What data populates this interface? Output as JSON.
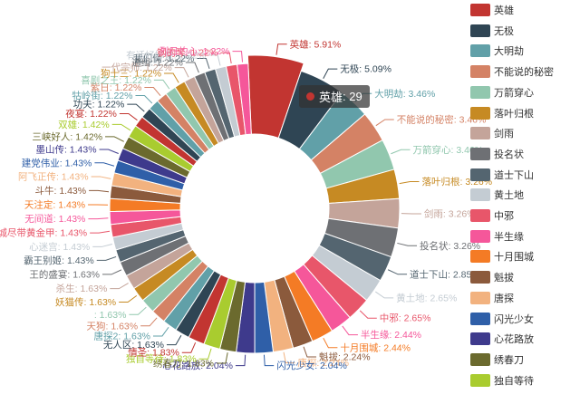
{
  "chart_data": {
    "type": "pie",
    "variant": "donut",
    "slices": [
      {
        "name": "英雄",
        "percent": 5.91,
        "color": "#c23531"
      },
      {
        "name": "无极",
        "percent": 5.09,
        "color": "#2f4554"
      },
      {
        "name": "大明劫",
        "percent": 3.46,
        "color": "#61a0a8"
      },
      {
        "name": "不能说的秘密",
        "percent": 3.46,
        "color": "#d48265"
      },
      {
        "name": "万箭穿心",
        "percent": 3.46,
        "color": "#91c7ae"
      },
      {
        "name": "落叶归根",
        "percent": 3.26,
        "color": "#c68a23"
      },
      {
        "name": "剑雨",
        "percent": 3.26,
        "color": "#c4a49a"
      },
      {
        "name": "投名状",
        "percent": 3.26,
        "color": "#6e7074"
      },
      {
        "name": "道士下山",
        "percent": 2.85,
        "color": "#546570"
      },
      {
        "name": "黄土地",
        "percent": 2.65,
        "color": "#c4ccd3"
      },
      {
        "name": "中邪",
        "percent": 2.65,
        "color": "#e8566a"
      },
      {
        "name": "半生缘",
        "percent": 2.44,
        "color": "#f5579a"
      },
      {
        "name": "十月围城",
        "percent": 2.44,
        "color": "#f47b25"
      },
      {
        "name": "魁拔",
        "percent": 2.24,
        "color": "#8b5a3c"
      },
      {
        "name": "唐探",
        "percent": 2.24,
        "color": "#f2b27f"
      },
      {
        "name": "闪光少女",
        "percent": 2.04,
        "color": "#2f5fa8"
      },
      {
        "name": "心花路放",
        "percent": 2.04,
        "color": "#3e3a8c"
      },
      {
        "name": "绣春刀",
        "percent": 1.83,
        "color": "#6b6a2e"
      },
      {
        "name": "独自等待",
        "percent": 1.83,
        "color": "#a9cc2f"
      },
      {
        "name": "情圣",
        "percent": 1.83,
        "color": "#c23531"
      },
      {
        "name": "无人区",
        "percent": 1.63,
        "color": "#2f4554"
      },
      {
        "name": "唐探2",
        "percent": 1.63,
        "color": "#61a0a8"
      },
      {
        "name": "天狗",
        "percent": 1.63,
        "color": "#d48265"
      },
      {
        "name": "",
        "percent": 1.63,
        "color": "#91c7ae"
      },
      {
        "name": "妖猫传",
        "percent": 1.63,
        "color": "#c68a23"
      },
      {
        "name": "杀生",
        "percent": 1.63,
        "color": "#c4a49a"
      },
      {
        "name": "王的盛宴",
        "percent": 1.63,
        "color": "#6e7074"
      },
      {
        "name": "霸王别姬",
        "percent": 1.43,
        "color": "#546570"
      },
      {
        "name": "心迷宫",
        "percent": 1.43,
        "color": "#c4ccd3"
      },
      {
        "name": "骑桶城尽带黄金甲",
        "percent": 1.43,
        "color": "#e8566a"
      },
      {
        "name": "无间道",
        "percent": 1.43,
        "color": "#f5579a"
      },
      {
        "name": "天注定",
        "percent": 1.43,
        "color": "#f47b25"
      },
      {
        "name": "斗牛",
        "percent": 1.43,
        "color": "#8b5a3c"
      },
      {
        "name": "阿飞正传",
        "percent": 1.43,
        "color": "#f2b27f"
      },
      {
        "name": "建党伟业",
        "percent": 1.43,
        "color": "#2f5fa8"
      },
      {
        "name": "墨山传",
        "percent": 1.43,
        "color": "#3e3a8c"
      },
      {
        "name": "三峡好人",
        "percent": 1.42,
        "color": "#6b6a2e"
      },
      {
        "name": "双雄",
        "percent": 1.42,
        "color": "#a9cc2f"
      },
      {
        "name": "夜宴",
        "percent": 1.22,
        "color": "#c23531"
      },
      {
        "name": "功夫",
        "percent": 1.22,
        "color": "#2f4554"
      },
      {
        "name": "牯岭街",
        "percent": 1.22,
        "color": "#61a0a8"
      },
      {
        "name": "紫日",
        "percent": 1.22,
        "color": "#d48265"
      },
      {
        "name": "喜剧之王",
        "percent": 1.22,
        "color": "#91c7ae"
      },
      {
        "name": "狗十三",
        "percent": 1.22,
        "color": "#c68a23"
      },
      {
        "name": "一代宗师",
        "percent": 1.22,
        "color": "#c4a49a"
      },
      {
        "name": "通缉",
        "percent": 1.22,
        "color": "#6e7074"
      },
      {
        "name": "我们俩",
        "percent": 1.22,
        "color": "#546570"
      },
      {
        "name": "有话好好说",
        "percent": 1.22,
        "color": "#c4ccd3"
      },
      {
        "name": "钢的琴",
        "percent": 1.22,
        "color": "#e8566a"
      },
      {
        "name": "烈日灼心",
        "percent": 1.22,
        "color": "#f5579a"
      }
    ],
    "legend_items": [
      "英雄",
      "无极",
      "大明劫",
      "不能说的秘密",
      "万箭穿心",
      "落叶归根",
      "剑雨",
      "投名状",
      "道士下山",
      "黄土地",
      "中邪",
      "半生缘",
      "十月围城",
      "魁拔",
      "唐探",
      "闪光少女",
      "心花路放",
      "绣春刀",
      "独自等待"
    ],
    "legend_placement": "right",
    "tooltip": {
      "name": "英雄",
      "value": "29",
      "color": "#c23531"
    }
  }
}
